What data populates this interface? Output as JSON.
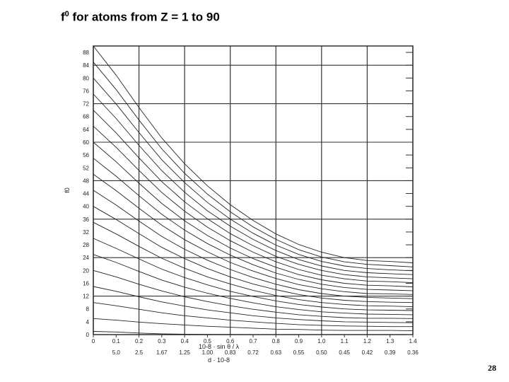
{
  "title": {
    "symbol": "f",
    "superscript": "0",
    "text": " for atoms from Z = 1 to 90"
  },
  "page_number": "28",
  "chart_data": {
    "type": "line",
    "title": "f0 for atoms from Z = 1 to 90",
    "ylabel": "f0",
    "xlabel": "10-8 · sin θ / λ",
    "xlabel2": "d · 10-8",
    "xlim": [
      0,
      1.4
    ],
    "ylim": [
      0,
      90
    ],
    "grid": true,
    "x_ticks": [
      "0",
      "0.1",
      "0.2",
      "0.3",
      "0.4",
      "0.5",
      "0.6",
      "0.7",
      "0.8",
      "0.9",
      "1.0",
      "1.1",
      "1.2",
      "1.3",
      "1.4"
    ],
    "y_ticks": [
      "0",
      "4",
      "8",
      "12",
      "16",
      "20",
      "24",
      "28",
      "32",
      "36",
      "40",
      "44",
      "48",
      "52",
      "56",
      "60",
      "64",
      "68",
      "72",
      "76",
      "80",
      "84",
      "88"
    ],
    "d_ticks": [
      {
        "x": 0.1,
        "label": "5.0"
      },
      {
        "x": 0.2,
        "label": "2.5"
      },
      {
        "x": 0.3,
        "label": "1.67"
      },
      {
        "x": 0.4,
        "label": "1.25"
      },
      {
        "x": 0.5,
        "label": "1.00"
      },
      {
        "x": 0.6,
        "label": "0.83"
      },
      {
        "x": 0.7,
        "label": "0.72"
      },
      {
        "x": 0.8,
        "label": "0.63"
      },
      {
        "x": 0.9,
        "label": "0.55"
      },
      {
        "x": 1.0,
        "label": "0.50"
      },
      {
        "x": 1.1,
        "label": "0.45"
      },
      {
        "x": 1.2,
        "label": "0.42"
      },
      {
        "x": 1.3,
        "label": "0.39"
      },
      {
        "x": 1.4,
        "label": "0.36"
      }
    ],
    "x": [
      0,
      0.1,
      0.2,
      0.3,
      0.4,
      0.5,
      0.6,
      0.7,
      0.8,
      0.9,
      1.0,
      1.1,
      1.2,
      1.3,
      1.4
    ],
    "series": [
      {
        "values": [
          90,
          80.9,
          70.8,
          61.3,
          53.3,
          46.4,
          40.5,
          35.6,
          31.4,
          28.1,
          25.7,
          24,
          23.1,
          22.8,
          22.4
        ]
      },
      {
        "values": [
          85,
          76.4,
          66.9,
          57.9,
          50.3,
          43.8,
          38.3,
          33.6,
          29.7,
          26.5,
          24.2,
          22.7,
          21.9,
          21.5,
          21.1
        ]
      },
      {
        "values": [
          80,
          71.9,
          63,
          54.5,
          47.4,
          41.2,
          36,
          31.6,
          27.9,
          25,
          22.8,
          21.4,
          20.6,
          20.2,
          19.9
        ]
      },
      {
        "values": [
          75,
          67.4,
          59,
          51.1,
          44.4,
          38.6,
          33.8,
          29.7,
          26.2,
          23.4,
          21.4,
          20,
          19.3,
          19,
          18.7
        ]
      },
      {
        "values": [
          70,
          62.9,
          55.1,
          47.7,
          41.4,
          36.1,
          31.5,
          27.7,
          24.4,
          21.9,
          20,
          18.7,
          18,
          17.7,
          17.4
        ]
      },
      {
        "values": [
          65,
          58.4,
          51.2,
          44.3,
          38.5,
          33.5,
          29.3,
          25.7,
          22.7,
          20.3,
          18.5,
          17.4,
          16.7,
          16.5,
          16.2
        ]
      },
      {
        "values": [
          60,
          53.9,
          47.2,
          40.9,
          35.5,
          30.9,
          27,
          23.7,
          21,
          18.7,
          17.1,
          16,
          15.4,
          15.2,
          14.9
        ]
      },
      {
        "values": [
          55,
          49.4,
          43.3,
          37.5,
          32.6,
          28.4,
          24.8,
          21.8,
          19.2,
          17.2,
          15.7,
          14.7,
          14.1,
          13.9,
          13.7
        ]
      },
      {
        "values": [
          50,
          44.9,
          39.4,
          34.1,
          29.6,
          25.8,
          22.5,
          19.8,
          17.5,
          15.6,
          14.3,
          13.4,
          12.8,
          12.7,
          12.5
        ]
      },
      {
        "values": [
          45,
          40.4,
          35.4,
          30.6,
          26.6,
          23.2,
          20.3,
          17.8,
          15.7,
          14,
          12.8,
          12,
          11.6,
          11.4,
          11.2
        ]
      },
      {
        "values": [
          40,
          35.9,
          31.5,
          27.2,
          23.7,
          20.6,
          18,
          15.8,
          14,
          12.5,
          11.4,
          10.7,
          10.3,
          10.1,
          10
        ]
      },
      {
        "values": [
          35,
          31.4,
          27.5,
          23.8,
          20.7,
          18,
          15.8,
          13.8,
          12.2,
          10.9,
          10,
          9.4,
          9,
          8.9,
          8.7
        ]
      },
      {
        "values": [
          30,
          26.9,
          23.6,
          20.4,
          17.8,
          15.5,
          13.5,
          11.9,
          10.5,
          9.4,
          8.6,
          8,
          7.7,
          7.6,
          7.5
        ]
      },
      {
        "values": [
          25,
          22.5,
          19.7,
          17,
          14.8,
          12.9,
          11.3,
          9.9,
          8.7,
          7.8,
          7.1,
          6.7,
          6.4,
          6.3,
          6.2
        ]
      },
      {
        "values": [
          20,
          18,
          15.7,
          13.6,
          11.8,
          10.3,
          9,
          7.9,
          7,
          6.2,
          5.7,
          5.3,
          5.1,
          5.1,
          5
        ]
      },
      {
        "values": [
          15,
          13.5,
          11.8,
          10.2,
          8.9,
          7.7,
          6.8,
          5.9,
          5.2,
          4.7,
          4.3,
          4,
          3.9,
          3.8,
          3.7
        ]
      },
      {
        "values": [
          10,
          9,
          7.9,
          6.8,
          5.9,
          5.2,
          4.5,
          4,
          3.5,
          3.1,
          2.9,
          2.7,
          2.6,
          2.5,
          2.5
        ]
      },
      {
        "values": [
          5,
          4.5,
          3.9,
          3.4,
          3,
          2.6,
          2.3,
          2,
          1.7,
          1.6,
          1.4,
          1.3,
          1.3,
          1.3,
          1.2
        ]
      },
      {
        "values": [
          1,
          0.81,
          0.48,
          0.25,
          0.13,
          0.07,
          0.04,
          0.02,
          0.01,
          0.01,
          0,
          0,
          0,
          0,
          0
        ]
      }
    ]
  }
}
